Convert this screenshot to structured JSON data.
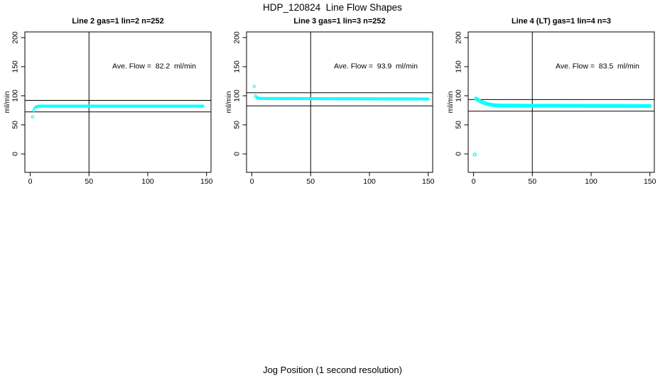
{
  "chart_data": {
    "type": "scatter",
    "title": "HDP_120824  Line Flow Shapes",
    "xlabel": "Jog Position (1 second resolution)",
    "background": "#ffffff",
    "axis_color": "#000000",
    "point_color": "#00ffff",
    "x_ticks": [
      0,
      50,
      100,
      150
    ],
    "y_ticks": [
      0,
      50,
      100,
      150,
      200
    ],
    "xlim": [
      0,
      150
    ],
    "ylim": [
      0,
      200
    ],
    "grid": "off",
    "legend": "none",
    "panels": [
      {
        "title": "Line 2 gas=1 lin=2 n=252",
        "ylabel": "ml/min",
        "ave_flow_ml_min": 82.2,
        "annotation": "Ave. Flow =  82.2  ml/min",
        "vline_x": 50,
        "hlines": [
          92.1,
          72.3
        ],
        "series": {
          "x_start": 2,
          "x_step": 1,
          "y": [
            63.8,
            74.5,
            79.0,
            80.8,
            81.6,
            82.0,
            82.1,
            82.2,
            82.2,
            82.2,
            82.2,
            82.2,
            82.2,
            82.2,
            82.2,
            82.2,
            82.2,
            82.2,
            82.2,
            82.2,
            82.2,
            82.2,
            82.2,
            82.2,
            82.2,
            82.2,
            82.2,
            82.2,
            82.2,
            82.2,
            82.2,
            82.2,
            82.2,
            82.2,
            82.2,
            82.2,
            82.2,
            82.2,
            82.2,
            82.2,
            82.2,
            82.2,
            82.2,
            82.2,
            82.2,
            82.2,
            82.2,
            82.2,
            82.2,
            82.2,
            82.2,
            82.2,
            82.2,
            82.2,
            82.2,
            82.2,
            82.2,
            82.2,
            82.2,
            82.2,
            82.2,
            82.2,
            82.2,
            82.2,
            82.2,
            82.2,
            82.2,
            82.2,
            82.2,
            82.2,
            82.2,
            82.2,
            82.2,
            82.2,
            82.2,
            82.2,
            82.2,
            82.2,
            82.2,
            82.2,
            82.2,
            82.2,
            82.2,
            82.2,
            82.2,
            82.2,
            82.2,
            82.2,
            82.2,
            82.2,
            82.2,
            82.2,
            82.2,
            82.2,
            82.2,
            82.2,
            82.2,
            82.2,
            82.2,
            82.2,
            82.2,
            82.2,
            82.2,
            82.2,
            82.2,
            82.2,
            82.2,
            82.2,
            82.2,
            82.2,
            82.2,
            82.2,
            82.2,
            82.2,
            82.2,
            82.2,
            82.2,
            82.2,
            82.2,
            82.2,
            82.2,
            82.2,
            82.2,
            82.2,
            82.2,
            82.2,
            82.2,
            82.2,
            82.2,
            82.2,
            82.2,
            82.2,
            82.2,
            82.2,
            82.2,
            82.2,
            82.2,
            82.2,
            82.2,
            82.2,
            82.2,
            82.2,
            82.2,
            82.2,
            82.2,
            82.2
          ]
        }
      },
      {
        "title": "Line 3 gas=1 lin=3 n=252",
        "ylabel": "ml/min",
        "ave_flow_ml_min": 93.9,
        "annotation": "Ave. Flow =  93.9  ml/min",
        "vline_x": 50,
        "hlines": [
          105.2,
          82.6
        ],
        "series": {
          "x_start": 2,
          "x_step": 1,
          "y": [
            116.2,
            99.6,
            96.9,
            96.1,
            95.7,
            95.5,
            95.4,
            95.3,
            95.3,
            95.3,
            95.3,
            95.3,
            95.3,
            95.3,
            95.3,
            95.3,
            95.3,
            95.3,
            95.3,
            95.3,
            95.3,
            95.3,
            95.3,
            95.2,
            95.2,
            95.2,
            95.2,
            95.2,
            95.2,
            95.2,
            95.2,
            95.2,
            95.2,
            95.2,
            95.2,
            95.2,
            95.2,
            95.2,
            95.2,
            95.1,
            95.1,
            95.1,
            95.1,
            95.1,
            95.1,
            95.1,
            95.1,
            95.1,
            95.1,
            95.1,
            95.1,
            95.1,
            95.1,
            95.1,
            95.1,
            95.0,
            95.0,
            95.0,
            95.0,
            95.0,
            95.0,
            95.0,
            95.0,
            95.0,
            95.0,
            95.0,
            95.0,
            95.0,
            95.0,
            95.0,
            95.0,
            94.9,
            94.9,
            94.9,
            94.9,
            94.9,
            94.9,
            94.9,
            94.9,
            94.9,
            94.9,
            94.9,
            94.9,
            94.9,
            94.9,
            94.9,
            94.9,
            94.8,
            94.8,
            94.8,
            94.8,
            94.8,
            94.8,
            94.8,
            94.8,
            94.8,
            94.8,
            94.8,
            94.8,
            94.8,
            94.8,
            94.8,
            94.8,
            94.7,
            94.7,
            94.7,
            94.7,
            94.7,
            94.7,
            94.7,
            94.7,
            94.7,
            94.7,
            94.7,
            94.7,
            94.7,
            94.7,
            94.7,
            94.7,
            94.6,
            94.6,
            94.6,
            94.6,
            94.6,
            94.6,
            94.6,
            94.6,
            94.6,
            94.6,
            94.6,
            94.6,
            94.6,
            94.6,
            94.6,
            94.6,
            94.5,
            94.5,
            94.5,
            94.5,
            94.5,
            94.5,
            94.5,
            94.5,
            94.5,
            94.5,
            94.5,
            94.5,
            94.5,
            94.5
          ]
        }
      },
      {
        "title": "Line 4 (LT) gas=1 lin=4 n=3",
        "ylabel": "ml/min",
        "ave_flow_ml_min": 83.5,
        "annotation": "Ave. Flow =  83.5  ml/min",
        "vline_x": 50,
        "hlines": [
          93.5,
          73.5
        ],
        "series": {
          "x_start": 1,
          "x_step": 1,
          "y": [
            -1.0,
            95.3,
            93.8,
            92.5,
            91.3,
            90.2,
            89.2,
            88.3,
            87.5,
            86.8,
            86.2,
            85.7,
            85.2,
            84.8,
            84.5,
            84.2,
            84.0,
            83.8,
            83.6,
            83.5,
            83.4,
            83.3,
            83.2,
            83.2,
            83.1,
            83.1,
            83.1,
            83.1,
            83.1,
            83.1,
            83.1,
            83.1,
            83.1,
            83.1,
            83.1,
            83.0,
            83.0,
            83.0,
            83.0,
            83.0,
            83.0,
            83.0,
            83.0,
            83.0,
            83.0,
            83.0,
            83.0,
            82.9,
            82.9,
            82.9,
            82.9,
            82.9,
            82.9,
            82.9,
            82.9,
            82.9,
            82.9,
            82.9,
            82.9,
            82.9,
            82.8,
            82.8,
            82.8,
            82.8,
            82.8,
            82.8,
            82.8,
            82.8,
            82.8,
            82.8,
            82.8,
            82.8,
            82.8,
            82.8,
            82.8,
            82.7,
            82.7,
            82.7,
            82.7,
            82.7,
            82.7,
            82.7,
            82.7,
            82.7,
            82.7,
            82.7,
            82.7,
            82.7,
            82.7,
            82.7,
            82.7,
            82.7,
            82.6,
            82.6,
            82.6,
            82.6,
            82.6,
            82.6,
            82.6,
            82.6,
            82.6,
            82.6,
            82.6,
            82.6,
            82.6,
            82.6,
            82.6,
            82.6,
            82.6,
            82.6,
            82.5,
            82.5,
            82.5,
            82.5,
            82.5,
            82.5,
            82.5,
            82.5,
            82.5,
            82.5,
            82.5,
            82.5,
            82.5,
            82.5,
            82.5,
            82.5,
            82.5,
            82.5,
            82.5,
            82.5,
            82.4,
            82.4,
            82.4,
            82.4,
            82.4,
            82.4,
            82.4,
            82.4,
            82.4,
            82.4,
            82.4,
            82.4,
            82.4,
            82.4,
            82.4,
            82.4,
            82.4,
            82.4,
            82.4,
            82.4
          ]
        }
      }
    ]
  }
}
